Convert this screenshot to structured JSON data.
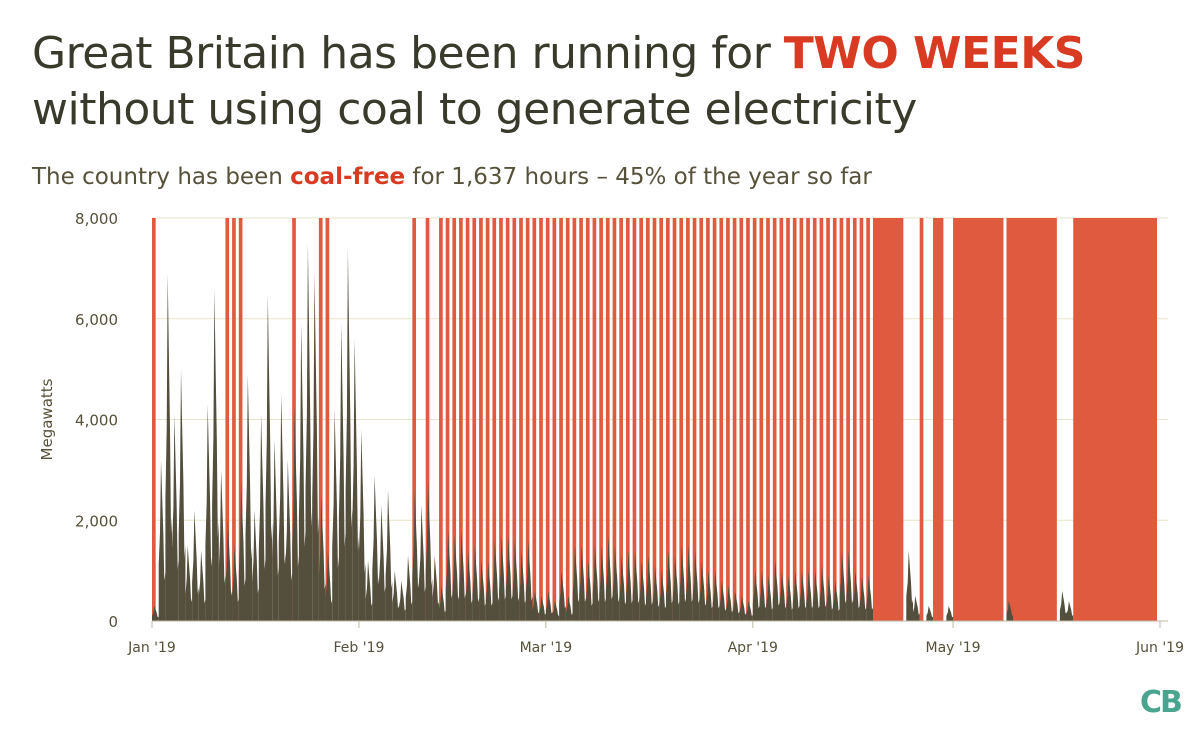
{
  "title": {
    "line1_prefix": "Great Britain has been running for ",
    "line1_highlight": "TWO WEEKS",
    "line2": "without using coal to generate electricity"
  },
  "subtitle": {
    "prefix": "The country has been ",
    "highlight": "coal-free",
    "suffix": " for 1,637 hours – 45% of the year so far"
  },
  "logo": "CB",
  "colors": {
    "coal": "#534f3c",
    "coal_free": "#e05a40",
    "grid": "#e7e3c8",
    "axis_text": "#55513a"
  },
  "chart_data": {
    "type": "area",
    "ylabel": "Megawatts",
    "ylim": [
      0,
      8000
    ],
    "yticks": [
      0,
      2000,
      4000,
      6000,
      8000
    ],
    "ytick_labels": [
      "0",
      "2,000",
      "4,000",
      "6,000",
      "8,000"
    ],
    "xlim": [
      "2019-01-01",
      "2019-06-01"
    ],
    "xticks": [
      "2019-01-01",
      "2019-02-01",
      "2019-03-01",
      "2019-04-01",
      "2019-05-01",
      "2019-06-01"
    ],
    "xtick_labels": [
      "Jan '19",
      "Feb '19",
      "Mar '19",
      "Apr '19",
      "May '19",
      "Jun '19"
    ],
    "series": [
      {
        "description": "coal generation peaks",
        "points": [
          [
            "2019-01-01",
            300
          ],
          [
            "2019-01-02",
            3200
          ],
          [
            "2019-01-03",
            6900
          ],
          [
            "2019-01-04",
            4100
          ],
          [
            "2019-01-05",
            5000
          ],
          [
            "2019-01-06",
            1500
          ],
          [
            "2019-01-07",
            2200
          ],
          [
            "2019-01-08",
            1400
          ],
          [
            "2019-01-09",
            4300
          ],
          [
            "2019-01-10",
            6600
          ],
          [
            "2019-01-11",
            3000
          ],
          [
            "2019-01-12",
            2000
          ],
          [
            "2019-01-13",
            1500
          ],
          [
            "2019-01-14",
            2800
          ],
          [
            "2019-01-15",
            4900
          ],
          [
            "2019-01-16",
            2200
          ],
          [
            "2019-01-17",
            4100
          ],
          [
            "2019-01-18",
            6500
          ],
          [
            "2019-01-19",
            3600
          ],
          [
            "2019-01-20",
            4500
          ],
          [
            "2019-01-21",
            3200
          ],
          [
            "2019-01-22",
            4300
          ],
          [
            "2019-01-23",
            5900
          ],
          [
            "2019-01-24",
            7500
          ],
          [
            "2019-01-25",
            6900
          ],
          [
            "2019-01-26",
            2500
          ],
          [
            "2019-01-27",
            1400
          ],
          [
            "2019-01-28",
            4200
          ],
          [
            "2019-01-29",
            5900
          ],
          [
            "2019-01-30",
            7400
          ],
          [
            "2019-01-31",
            5600
          ],
          [
            "2019-02-01",
            3800
          ],
          [
            "2019-02-02",
            1200
          ],
          [
            "2019-02-03",
            2900
          ],
          [
            "2019-02-04",
            2300
          ],
          [
            "2019-02-05",
            2600
          ],
          [
            "2019-02-06",
            1000
          ],
          [
            "2019-02-07",
            800
          ],
          [
            "2019-02-08",
            1300
          ],
          [
            "2019-02-09",
            2600
          ],
          [
            "2019-02-10",
            2300
          ],
          [
            "2019-02-11",
            2800
          ],
          [
            "2019-02-12",
            1300
          ],
          [
            "2019-02-13",
            700
          ],
          [
            "2019-02-14",
            1800
          ],
          [
            "2019-02-15",
            1700
          ],
          [
            "2019-02-16",
            1800
          ],
          [
            "2019-02-17",
            1400
          ],
          [
            "2019-02-18",
            1500
          ],
          [
            "2019-02-19",
            1200
          ],
          [
            "2019-02-20",
            1200
          ],
          [
            "2019-02-21",
            1600
          ],
          [
            "2019-02-22",
            1700
          ],
          [
            "2019-02-23",
            1700
          ],
          [
            "2019-02-24",
            1600
          ],
          [
            "2019-02-25",
            1400
          ],
          [
            "2019-02-26",
            1600
          ],
          [
            "2019-02-27",
            600
          ],
          [
            "2019-02-28",
            500
          ],
          [
            "2019-03-01",
            600
          ],
          [
            "2019-03-02",
            400
          ],
          [
            "2019-03-03",
            1000
          ],
          [
            "2019-03-04",
            500
          ],
          [
            "2019-03-05",
            1500
          ],
          [
            "2019-03-06",
            1500
          ],
          [
            "2019-03-07",
            1200
          ],
          [
            "2019-03-08",
            1500
          ],
          [
            "2019-03-09",
            1500
          ],
          [
            "2019-03-10",
            1700
          ],
          [
            "2019-03-11",
            1500
          ],
          [
            "2019-03-12",
            1300
          ],
          [
            "2019-03-13",
            1400
          ],
          [
            "2019-03-14",
            1400
          ],
          [
            "2019-03-15",
            1200
          ],
          [
            "2019-03-16",
            1300
          ],
          [
            "2019-03-17",
            1100
          ],
          [
            "2019-03-18",
            1000
          ],
          [
            "2019-03-19",
            1400
          ],
          [
            "2019-03-20",
            1300
          ],
          [
            "2019-03-21",
            1500
          ],
          [
            "2019-03-22",
            1500
          ],
          [
            "2019-03-23",
            1400
          ],
          [
            "2019-03-24",
            1200
          ],
          [
            "2019-03-25",
            1000
          ],
          [
            "2019-03-26",
            1000
          ],
          [
            "2019-03-27",
            800
          ],
          [
            "2019-03-28",
            700
          ],
          [
            "2019-03-29",
            600
          ],
          [
            "2019-03-30",
            500
          ],
          [
            "2019-03-31",
            400
          ],
          [
            "2019-04-01",
            1000
          ],
          [
            "2019-04-02",
            1000
          ],
          [
            "2019-04-03",
            900
          ],
          [
            "2019-04-04",
            1200
          ],
          [
            "2019-04-05",
            1000
          ],
          [
            "2019-04-06",
            900
          ],
          [
            "2019-04-07",
            1000
          ],
          [
            "2019-04-08",
            1000
          ],
          [
            "2019-04-09",
            1000
          ],
          [
            "2019-04-10",
            1000
          ],
          [
            "2019-04-11",
            1100
          ],
          [
            "2019-04-12",
            900
          ],
          [
            "2019-04-13",
            800
          ],
          [
            "2019-04-14",
            1400
          ],
          [
            "2019-04-15",
            1400
          ],
          [
            "2019-04-16",
            1000
          ],
          [
            "2019-04-17",
            900
          ],
          [
            "2019-04-18",
            900
          ],
          [
            "2019-04-19",
            0
          ],
          [
            "2019-04-20",
            0
          ],
          [
            "2019-04-21",
            0
          ],
          [
            "2019-04-22",
            0
          ],
          [
            "2019-04-23",
            0
          ],
          [
            "2019-04-24",
            1400
          ],
          [
            "2019-04-25",
            500
          ],
          [
            "2019-04-26",
            0
          ],
          [
            "2019-04-27",
            300
          ],
          [
            "2019-04-28",
            0
          ],
          [
            "2019-04-29",
            0
          ],
          [
            "2019-04-30",
            300
          ],
          [
            "2019-05-01",
            0
          ],
          [
            "2019-05-02",
            0
          ],
          [
            "2019-05-03",
            0
          ],
          [
            "2019-05-04",
            0
          ],
          [
            "2019-05-05",
            0
          ],
          [
            "2019-05-06",
            0
          ],
          [
            "2019-05-07",
            0
          ],
          [
            "2019-05-08",
            0
          ],
          [
            "2019-05-09",
            400
          ],
          [
            "2019-05-10",
            0
          ],
          [
            "2019-05-11",
            0
          ],
          [
            "2019-05-12",
            0
          ],
          [
            "2019-05-13",
            0
          ],
          [
            "2019-05-14",
            0
          ],
          [
            "2019-05-15",
            0
          ],
          [
            "2019-05-16",
            0
          ],
          [
            "2019-05-17",
            600
          ],
          [
            "2019-05-18",
            400
          ],
          [
            "2019-05-19",
            0
          ],
          [
            "2019-05-20",
            0
          ],
          [
            "2019-05-21",
            0
          ],
          [
            "2019-05-22",
            0
          ],
          [
            "2019-05-23",
            0
          ],
          [
            "2019-05-24",
            0
          ],
          [
            "2019-05-25",
            0
          ],
          [
            "2019-05-26",
            0
          ],
          [
            "2019-05-27",
            0
          ],
          [
            "2019-05-28",
            0
          ],
          [
            "2019-05-29",
            0
          ],
          [
            "2019-05-30",
            0
          ],
          [
            "2019-05-31",
            0
          ]
        ]
      }
    ],
    "coal_free_periods": [
      [
        "2019-01-01",
        "2019-01-01"
      ],
      [
        "2019-01-12",
        "2019-01-12"
      ],
      [
        "2019-01-13",
        "2019-01-13"
      ],
      [
        "2019-01-14",
        "2019-01-14"
      ],
      [
        "2019-01-22",
        "2019-01-22"
      ],
      [
        "2019-01-26",
        "2019-01-26"
      ],
      [
        "2019-01-27",
        "2019-01-27"
      ],
      [
        "2019-02-09",
        "2019-02-09"
      ],
      [
        "2019-02-11",
        "2019-02-11"
      ],
      [
        "2019-02-13",
        "2019-02-13"
      ],
      [
        "2019-02-14",
        "2019-02-14"
      ],
      [
        "2019-02-15",
        "2019-02-15"
      ],
      [
        "2019-02-16",
        "2019-02-16"
      ],
      [
        "2019-02-17",
        "2019-02-17"
      ],
      [
        "2019-02-18",
        "2019-02-18"
      ],
      [
        "2019-02-19",
        "2019-02-19"
      ],
      [
        "2019-02-20",
        "2019-02-20"
      ],
      [
        "2019-02-21",
        "2019-02-21"
      ],
      [
        "2019-02-22",
        "2019-02-22"
      ],
      [
        "2019-02-23",
        "2019-02-23"
      ],
      [
        "2019-02-24",
        "2019-02-24"
      ],
      [
        "2019-02-25",
        "2019-02-25"
      ],
      [
        "2019-02-26",
        "2019-02-26"
      ],
      [
        "2019-02-27",
        "2019-02-27"
      ],
      [
        "2019-02-28",
        "2019-02-28"
      ],
      [
        "2019-03-01",
        "2019-03-01"
      ],
      [
        "2019-03-02",
        "2019-03-02"
      ],
      [
        "2019-03-03",
        "2019-03-03"
      ],
      [
        "2019-03-04",
        "2019-03-04"
      ],
      [
        "2019-03-05",
        "2019-03-05"
      ],
      [
        "2019-03-06",
        "2019-03-06"
      ],
      [
        "2019-03-07",
        "2019-03-07"
      ],
      [
        "2019-03-08",
        "2019-03-08"
      ],
      [
        "2019-03-09",
        "2019-03-09"
      ],
      [
        "2019-03-10",
        "2019-03-10"
      ],
      [
        "2019-03-11",
        "2019-03-11"
      ],
      [
        "2019-03-12",
        "2019-03-12"
      ],
      [
        "2019-03-13",
        "2019-03-13"
      ],
      [
        "2019-03-14",
        "2019-03-14"
      ],
      [
        "2019-03-15",
        "2019-03-15"
      ],
      [
        "2019-03-16",
        "2019-03-16"
      ],
      [
        "2019-03-17",
        "2019-03-17"
      ],
      [
        "2019-03-18",
        "2019-03-18"
      ],
      [
        "2019-03-19",
        "2019-03-19"
      ],
      [
        "2019-03-20",
        "2019-03-20"
      ],
      [
        "2019-03-21",
        "2019-03-21"
      ],
      [
        "2019-03-22",
        "2019-03-22"
      ],
      [
        "2019-03-23",
        "2019-03-23"
      ],
      [
        "2019-03-24",
        "2019-03-24"
      ],
      [
        "2019-03-25",
        "2019-03-25"
      ],
      [
        "2019-03-26",
        "2019-03-26"
      ],
      [
        "2019-03-27",
        "2019-03-27"
      ],
      [
        "2019-03-28",
        "2019-03-28"
      ],
      [
        "2019-03-29",
        "2019-03-29"
      ],
      [
        "2019-03-30",
        "2019-03-30"
      ],
      [
        "2019-03-31",
        "2019-03-31"
      ],
      [
        "2019-04-01",
        "2019-04-01"
      ],
      [
        "2019-04-02",
        "2019-04-02"
      ],
      [
        "2019-04-03",
        "2019-04-03"
      ],
      [
        "2019-04-04",
        "2019-04-04"
      ],
      [
        "2019-04-05",
        "2019-04-05"
      ],
      [
        "2019-04-06",
        "2019-04-06"
      ],
      [
        "2019-04-07",
        "2019-04-07"
      ],
      [
        "2019-04-08",
        "2019-04-08"
      ],
      [
        "2019-04-09",
        "2019-04-09"
      ],
      [
        "2019-04-10",
        "2019-04-10"
      ],
      [
        "2019-04-11",
        "2019-04-11"
      ],
      [
        "2019-04-12",
        "2019-04-12"
      ],
      [
        "2019-04-13",
        "2019-04-13"
      ],
      [
        "2019-04-14",
        "2019-04-14"
      ],
      [
        "2019-04-15",
        "2019-04-15"
      ],
      [
        "2019-04-16",
        "2019-04-16"
      ],
      [
        "2019-04-17",
        "2019-04-17"
      ],
      [
        "2019-04-18",
        "2019-04-18"
      ],
      [
        "2019-04-19",
        "2019-04-23"
      ],
      [
        "2019-04-26",
        "2019-04-26"
      ],
      [
        "2019-04-28",
        "2019-04-29"
      ],
      [
        "2019-05-01",
        "2019-05-08"
      ],
      [
        "2019-05-09",
        "2019-05-16"
      ],
      [
        "2019-05-19",
        "2019-05-31"
      ]
    ]
  }
}
